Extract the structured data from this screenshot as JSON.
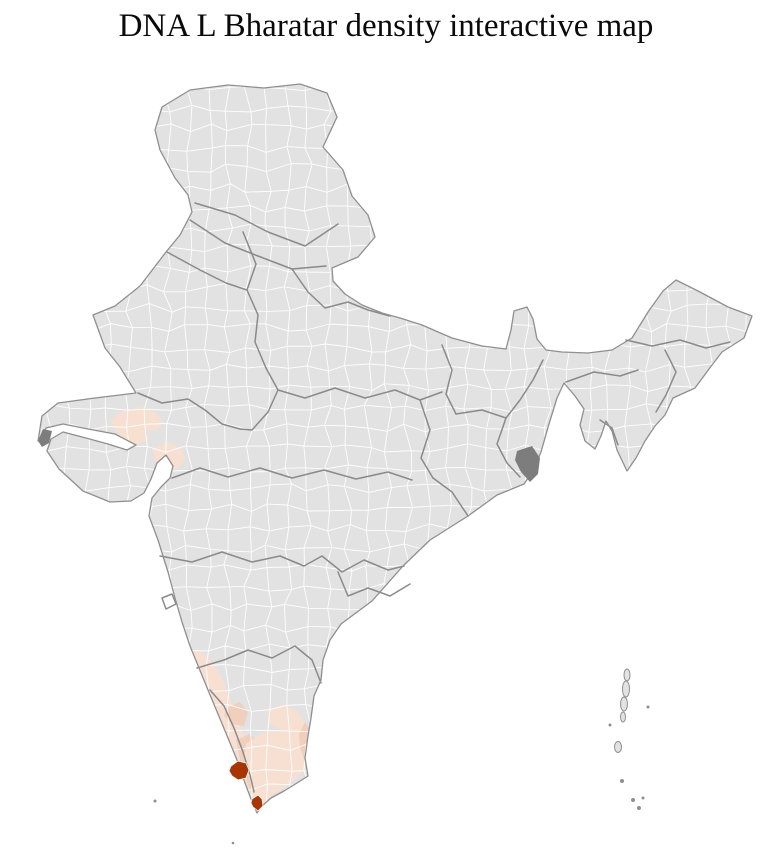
{
  "title": "DNA L Bharatar density interactive map",
  "map": {
    "name": "india-districts-density-choropleth",
    "colors": {
      "background": "#ffffff",
      "title_text": "#0a0a0a",
      "district_fill": "#e2e2e2",
      "district_border": "#ffffff",
      "state_border": "#8a8a8a",
      "outer_border": "#8f8f8f",
      "density_low": "#f7e0d2",
      "density_mid": "#f0cfbc",
      "density_high": "#a63603",
      "dark_district": "#7d7d7d"
    },
    "highlighted_regions": [
      {
        "name": "north-gujarat-districts",
        "level": "low"
      },
      {
        "name": "east-gujarat-districts",
        "level": "low"
      },
      {
        "name": "kerala-coastal-districts",
        "level": "low"
      },
      {
        "name": "south-kerala-districts",
        "level": "mid"
      },
      {
        "name": "south-tamil-nadu-districts",
        "level": "low"
      },
      {
        "name": "coimbatore-district",
        "level": "mid"
      },
      {
        "name": "east-tamil-nadu-districts",
        "level": "mid"
      },
      {
        "name": "central-kerala-district",
        "level": "high"
      },
      {
        "name": "kanyakumari-district",
        "level": "high"
      },
      {
        "name": "sundarbans-district",
        "level": "dark"
      },
      {
        "name": "kutch-creek-area",
        "level": "dark"
      }
    ]
  }
}
